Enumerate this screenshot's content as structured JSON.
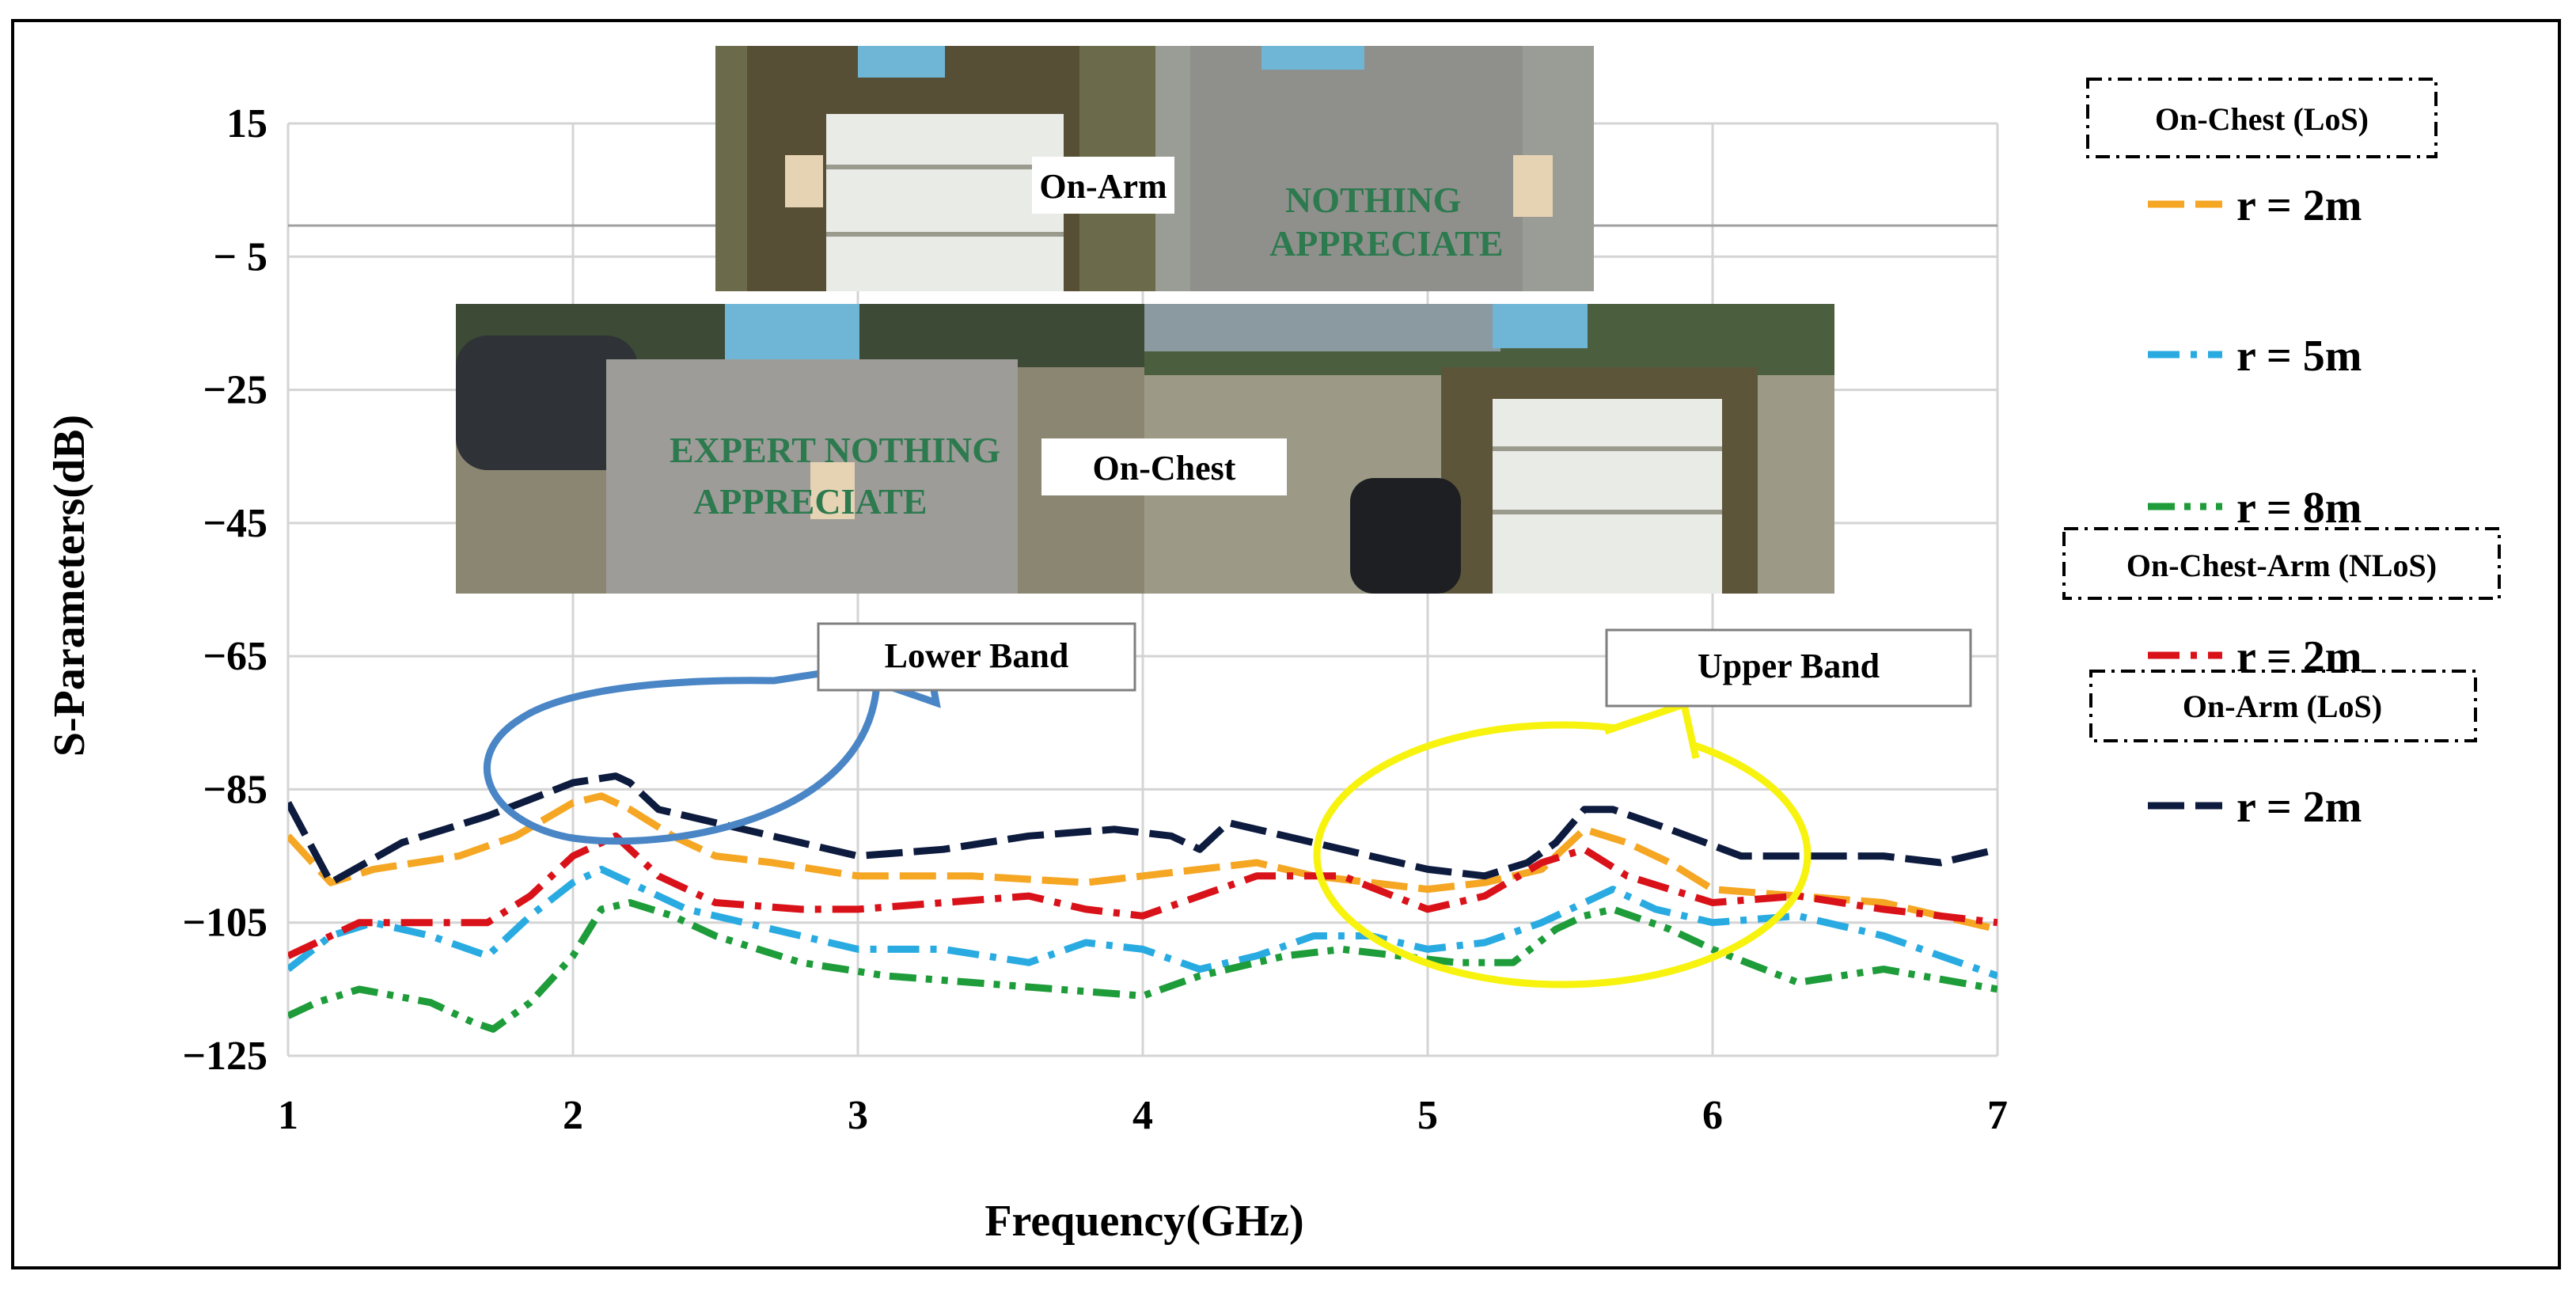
{
  "chart_data": {
    "type": "line",
    "xlabel": "Frequency(GHz)",
    "ylabel": "S-Parameters(dB)",
    "xlim": [
      1,
      7
    ],
    "ylim": [
      -125,
      15
    ],
    "x_ticks": [
      "1",
      "2",
      "3",
      "4",
      "5",
      "6",
      "7"
    ],
    "y_ticks": [
      "15",
      "− 5",
      "−25",
      "−45",
      "−65",
      "−85",
      "−105",
      "−125"
    ],
    "y_tick_values": [
      15,
      -5,
      -25,
      -45,
      -65,
      -85,
      -105,
      -125
    ],
    "grid": true,
    "legend_position": "right",
    "legend_groups": [
      {
        "title": "On-Chest (LoS)",
        "entries": [
          0,
          1,
          2
        ]
      },
      {
        "title": "On-Chest-Arm (NLoS)",
        "entries": [
          3
        ]
      },
      {
        "title": "On-Arm (LoS)",
        "entries": [
          4
        ]
      }
    ],
    "series": [
      {
        "name": "r = 2m",
        "color": "#f5a623",
        "dash": "long-dash",
        "x": [
          1.0,
          1.15,
          1.3,
          1.6,
          1.8,
          2.0,
          2.1,
          2.2,
          2.35,
          2.5,
          2.7,
          3.0,
          3.4,
          3.8,
          4.0,
          4.2,
          4.4,
          4.6,
          4.8,
          5.0,
          5.2,
          5.4,
          5.55,
          5.7,
          5.85,
          6.0,
          6.3,
          6.6,
          7.0
        ],
        "y": [
          -92,
          -99,
          -97,
          -95,
          -92,
          -87,
          -86,
          -88,
          -92,
          -95,
          -96,
          -98,
          -98,
          -99,
          -98,
          -97,
          -96,
          -98,
          -99,
          -100,
          -99,
          -97,
          -91,
          -93,
          -96,
          -100,
          -101,
          -102,
          -106
        ]
      },
      {
        "name": "r = 5m",
        "color": "#29abe2",
        "dash": "dash-dot",
        "x": [
          1.0,
          1.15,
          1.3,
          1.5,
          1.7,
          1.85,
          2.0,
          2.1,
          2.2,
          2.4,
          2.7,
          3.0,
          3.3,
          3.6,
          3.8,
          4.0,
          4.2,
          4.4,
          4.6,
          4.8,
          5.0,
          5.2,
          5.4,
          5.55,
          5.65,
          5.8,
          6.0,
          6.3,
          6.6,
          7.0
        ],
        "y": [
          -112,
          -107,
          -105,
          -107,
          -110,
          -104,
          -99,
          -97,
          -99,
          -103,
          -106,
          -109,
          -109,
          -111,
          -108,
          -109,
          -112,
          -110,
          -107,
          -107,
          -109,
          -108,
          -105,
          -102,
          -100,
          -103,
          -105,
          -104,
          -107,
          -113
        ]
      },
      {
        "name": "r = 8m",
        "color": "#1e9c3a",
        "dash": "dash-dot-dot",
        "x": [
          1.0,
          1.1,
          1.25,
          1.5,
          1.65,
          1.72,
          1.85,
          2.0,
          2.1,
          2.2,
          2.35,
          2.5,
          2.8,
          3.1,
          3.4,
          3.7,
          4.0,
          4.2,
          4.5,
          4.7,
          4.9,
          5.1,
          5.3,
          5.45,
          5.55,
          5.65,
          5.85,
          6.0,
          6.3,
          6.6,
          7.0
        ],
        "y": [
          -119,
          -117,
          -115,
          -117,
          -120,
          -121,
          -117,
          -110,
          -103,
          -102,
          -104,
          -107,
          -111,
          -113,
          -114,
          -115,
          -116,
          -113,
          -110,
          -109,
          -110,
          -111,
          -111,
          -106,
          -104,
          -103,
          -106,
          -109,
          -114,
          -112,
          -115
        ]
      },
      {
        "name": "r = 2m",
        "color": "#d9121a",
        "dash": "dash-dot",
        "x": [
          1.0,
          1.1,
          1.25,
          1.5,
          1.7,
          1.85,
          2.0,
          2.15,
          2.3,
          2.5,
          2.8,
          3.0,
          3.3,
          3.6,
          3.8,
          4.0,
          4.2,
          4.4,
          4.7,
          5.0,
          5.2,
          5.4,
          5.55,
          5.7,
          5.85,
          6.0,
          6.3,
          6.6,
          7.0
        ],
        "y": [
          -110,
          -108,
          -105,
          -105,
          -105,
          -101,
          -95,
          -92,
          -98,
          -102,
          -103,
          -103,
          -102,
          -101,
          -103,
          -104,
          -101,
          -98,
          -98,
          -103,
          -101,
          -96,
          -94,
          -98,
          -100,
          -102,
          -101,
          -103,
          -105
        ]
      },
      {
        "name": "r = 2m",
        "color": "#0d1b3e",
        "dash": "long-dash",
        "x": [
          1.0,
          1.15,
          1.4,
          1.7,
          2.0,
          2.15,
          2.2,
          2.3,
          2.6,
          3.0,
          3.3,
          3.6,
          3.9,
          4.1,
          4.2,
          4.3,
          4.4,
          4.6,
          4.8,
          5.0,
          5.2,
          5.35,
          5.45,
          5.55,
          5.65,
          5.85,
          6.1,
          6.4,
          6.6,
          6.8,
          7.0
        ],
        "y": [
          -87,
          -99,
          -93,
          -89,
          -84,
          -83,
          -84,
          -88,
          -91,
          -95,
          -94,
          -92,
          -91,
          -92,
          -94,
          -90,
          -91,
          -93,
          -95,
          -97,
          -98,
          -96,
          -93,
          -88,
          -88,
          -91,
          -95,
          -95,
          -95,
          -96,
          -94
        ]
      }
    ],
    "annotations": [
      {
        "text": "Lower Band",
        "color": "#4a86c5"
      },
      {
        "text": "Upper Band",
        "color": "#f7f30f"
      }
    ],
    "inset_photos": [
      {
        "label": "On-Arm"
      },
      {
        "label": "On-Chest"
      }
    ]
  }
}
